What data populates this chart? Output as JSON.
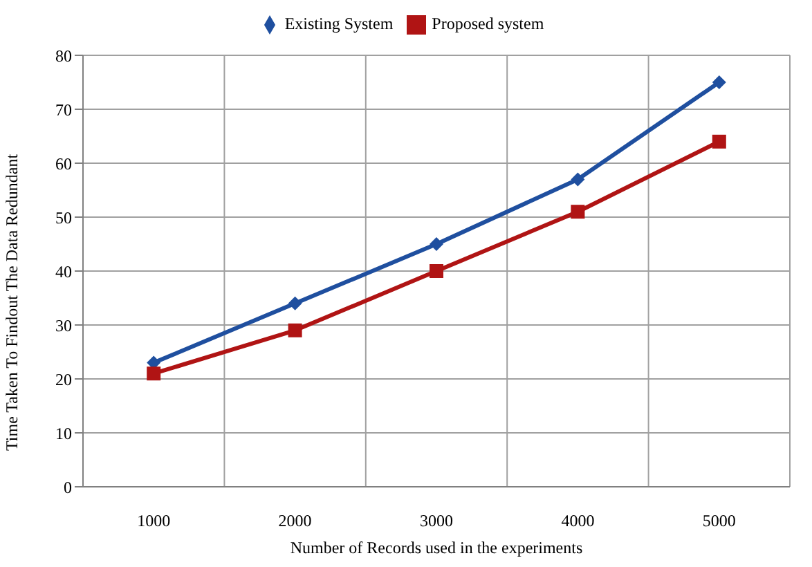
{
  "chart_data": {
    "type": "line",
    "xlabel": "Number of Records used in the experiments",
    "ylabel": "Time Taken To Findout The Data Redundant",
    "categories": [
      "1000",
      "2000",
      "3000",
      "4000",
      "5000"
    ],
    "series": [
      {
        "name": "Existing System",
        "color": "#1f4f9f",
        "marker": "diamond",
        "values": [
          23,
          34,
          45,
          57,
          75
        ]
      },
      {
        "name": "Proposed system",
        "color": "#b01414",
        "marker": "square",
        "values": [
          21,
          29,
          40,
          51,
          64
        ]
      }
    ],
    "ylim": [
      0,
      80
    ],
    "yticks": [
      0,
      10,
      20,
      30,
      40,
      50,
      60,
      70,
      80
    ],
    "grid": true,
    "legend": "top",
    "line_style": "solid"
  }
}
